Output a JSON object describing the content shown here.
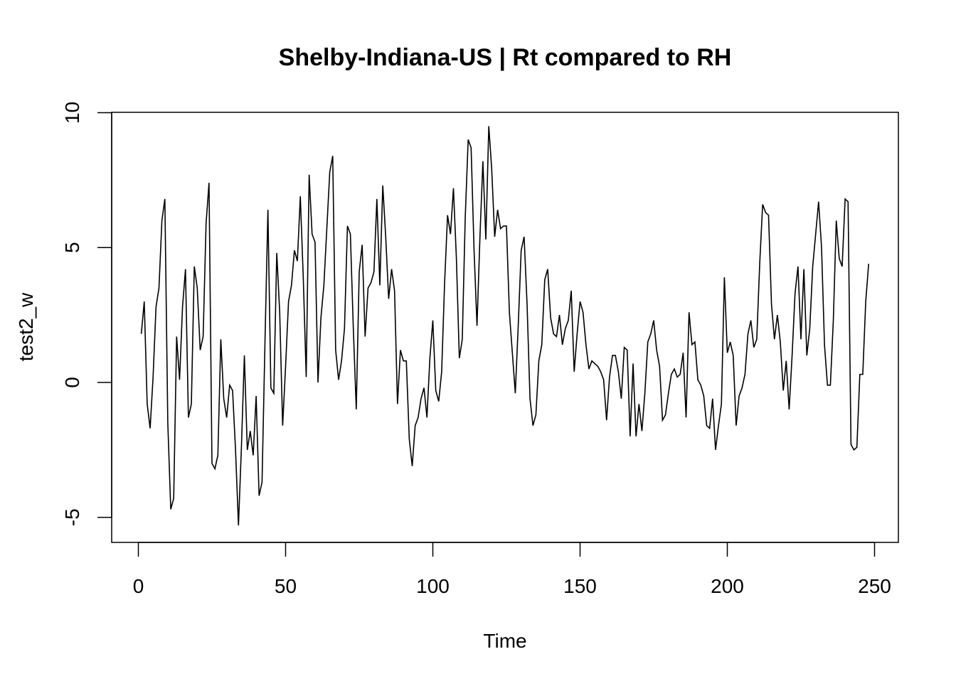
{
  "chart_data": {
    "type": "line",
    "title": "Shelby-Indiana-US | Rt compared to RH",
    "xlabel": "Time",
    "ylabel": "test2_w",
    "xlim": [
      0,
      250
    ],
    "ylim": [
      -5,
      10
    ],
    "x_ticks": [
      0,
      50,
      100,
      150,
      200,
      250
    ],
    "y_ticks": [
      -5,
      0,
      5,
      10
    ],
    "grid": false,
    "line_color": "#000000",
    "x_start": 1,
    "series": [
      {
        "values": [
          1.8,
          3.0,
          -0.8,
          -1.7,
          0.2,
          2.8,
          3.5,
          6.0,
          6.8,
          -1.5,
          -4.7,
          -4.3,
          1.7,
          0.1,
          2.8,
          4.2,
          -1.3,
          -0.8,
          4.3,
          3.5,
          1.2,
          1.7,
          5.9,
          7.4,
          -3.0,
          -3.2,
          -2.7,
          1.6,
          -0.6,
          -1.3,
          -0.1,
          -0.3,
          -2.5,
          -5.3,
          -2.4,
          1.0,
          -2.5,
          -1.8,
          -2.7,
          -0.5,
          -4.2,
          -3.7,
          1.5,
          6.4,
          -0.2,
          -0.4,
          4.8,
          2.6,
          -1.6,
          0.6,
          3.0,
          3.6,
          4.9,
          4.5,
          6.9,
          3.9,
          0.2,
          7.7,
          5.5,
          5.2,
          0.0,
          2.4,
          3.6,
          5.7,
          7.8,
          8.4,
          1.2,
          0.1,
          0.8,
          2.0,
          5.8,
          5.5,
          2.0,
          -1.0,
          4.1,
          5.1,
          1.7,
          3.5,
          3.7,
          4.1,
          6.8,
          3.6,
          7.3,
          5.4,
          3.1,
          4.2,
          3.4,
          -0.8,
          1.2,
          0.8,
          0.8,
          -2.1,
          -3.1,
          -1.6,
          -1.3,
          -0.6,
          -0.2,
          -1.3,
          0.9,
          2.3,
          -0.3,
          -0.7,
          0.4,
          3.7,
          6.2,
          5.5,
          7.2,
          4.6,
          0.9,
          1.6,
          6.1,
          9.0,
          8.7,
          4.9,
          2.1,
          5.4,
          8.2,
          5.3,
          9.5,
          7.9,
          5.4,
          6.4,
          5.7,
          5.8,
          5.8,
          2.6,
          1.1,
          -0.4,
          2.1,
          4.9,
          5.4,
          2.9,
          -0.6,
          -1.6,
          -1.2,
          0.8,
          1.4,
          3.8,
          4.2,
          2.4,
          1.8,
          1.7,
          2.5,
          1.4,
          2.0,
          2.3,
          3.4,
          0.4,
          1.8,
          3.0,
          2.6,
          1.4,
          0.5,
          0.8,
          0.7,
          0.6,
          0.4,
          0.1,
          -1.4,
          0.2,
          1.0,
          1.0,
          0.4,
          -0.6,
          1.3,
          1.2,
          -2.0,
          0.7,
          -2.0,
          -0.8,
          -1.8,
          -0.4,
          1.5,
          1.8,
          2.3,
          1.2,
          0.6,
          -1.4,
          -1.2,
          -0.4,
          0.3,
          0.5,
          0.2,
          0.3,
          1.1,
          -1.3,
          2.6,
          1.4,
          1.5,
          0.1,
          -0.1,
          -0.5,
          -1.6,
          -1.7,
          -0.6,
          -2.5,
          -1.6,
          -0.8,
          3.9,
          1.1,
          1.5,
          1.0,
          -1.6,
          -0.5,
          -0.2,
          0.3,
          1.8,
          2.3,
          1.3,
          1.6,
          4.4,
          6.6,
          6.3,
          6.2,
          2.9,
          1.6,
          2.5,
          1.5,
          -0.3,
          0.8,
          -1.0,
          1.0,
          3.3,
          4.3,
          1.6,
          4.2,
          1.0,
          2.0,
          4.3,
          5.5,
          6.7,
          5.0,
          1.4,
          -0.1,
          -0.1,
          2.3,
          6.0,
          4.6,
          4.3,
          6.8,
          6.7,
          -2.3,
          -2.5,
          -2.4,
          0.3,
          0.3,
          3.0,
          4.4
        ]
      }
    ]
  }
}
